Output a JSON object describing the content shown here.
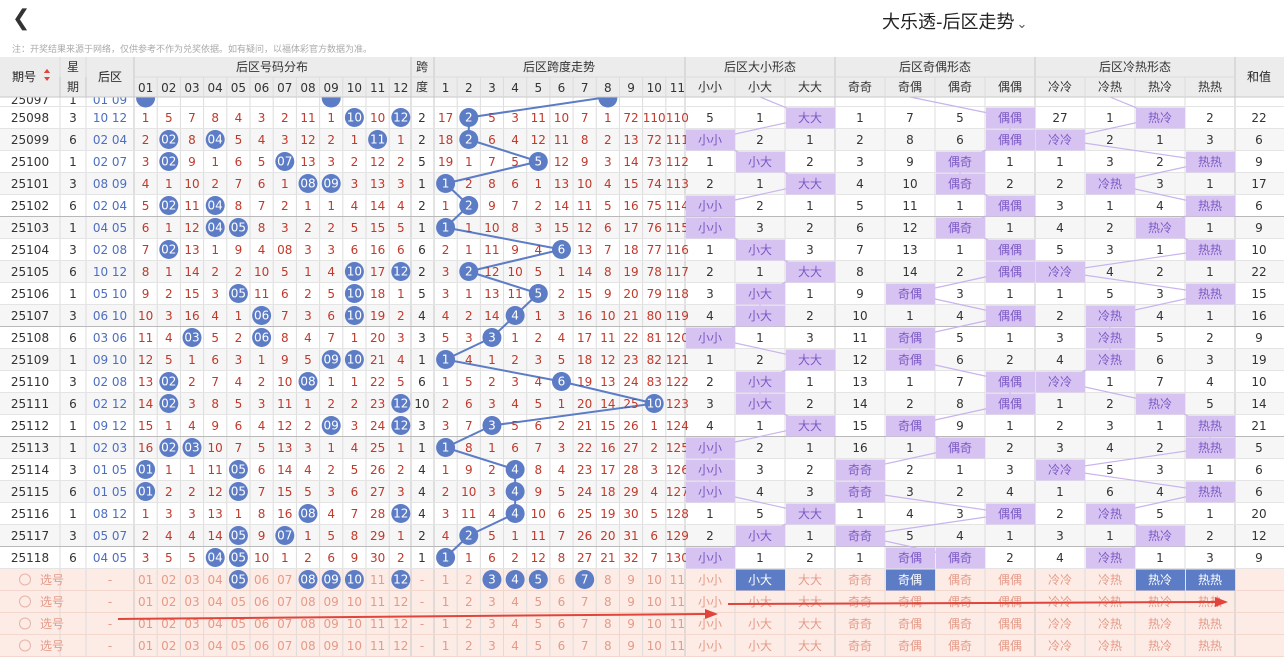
{
  "header": {
    "back_icon": "chevron-left-icon",
    "title": "大乐透-后区走势",
    "dropdown_icon": "chevron-down-icon"
  },
  "note": "注：开奖结果来源于网络，仅供参考不作为兑奖依据。如有疑问，以福体彩官方数据为准。",
  "table": {
    "col_period": "期号",
    "sort_icon": "sort-icon",
    "col_week": [
      "星",
      "期"
    ],
    "col_back": "后区",
    "group_dist": "后区号码分布",
    "group_span_top": "跨",
    "group_span_bottom": "度",
    "group_trend": "后区跨度走势",
    "group_size": "后区大小形态",
    "group_parity": "后区奇偶形态",
    "group_temp": "后区冷热形态",
    "col_sum": "和值",
    "nums": [
      "01",
      "02",
      "03",
      "04",
      "05",
      "06",
      "07",
      "08",
      "09",
      "10",
      "11",
      "12"
    ],
    "spans": [
      "1",
      "2",
      "3",
      "4",
      "5",
      "6",
      "7",
      "8",
      "9",
      "10",
      "11"
    ],
    "size_heads": [
      "小小",
      "小大",
      "大大"
    ],
    "parity_heads": [
      "奇奇",
      "奇偶",
      "偶奇",
      "偶偶"
    ],
    "temp_heads": [
      "冷冷",
      "冷热",
      "热冷",
      "热热"
    ],
    "partial_row": {
      "period": "25097",
      "week": "1",
      "back": "01 09"
    },
    "rows": [
      {
        "period": "25098",
        "week": "3",
        "back": "10 12",
        "dist": [
          "1",
          "5",
          "7",
          "8",
          "4",
          "3",
          "2",
          "11",
          "1",
          "10",
          "10",
          "12"
        ],
        "kua": "2",
        "trend": [
          "17",
          "2",
          "5",
          "3",
          "11",
          "10",
          "7",
          "1",
          "72",
          "110",
          "110"
        ],
        "size": [
          "5",
          "1",
          "大大"
        ],
        "parity": [
          "1",
          "7",
          "5",
          "偶偶"
        ],
        "temp": [
          "27",
          "1",
          "热冷",
          "2"
        ],
        "sum": "22"
      },
      {
        "period": "25099",
        "week": "6",
        "back": "02 04",
        "dist": [
          "2",
          "02",
          "8",
          "04",
          "5",
          "4",
          "3",
          "12",
          "2",
          "1",
          "11",
          "1"
        ],
        "kua": "2",
        "trend": [
          "18",
          "2",
          "6",
          "4",
          "12",
          "11",
          "8",
          "2",
          "13",
          "72",
          "111"
        ],
        "size": [
          "小小",
          "2",
          "1"
        ],
        "parity": [
          "2",
          "8",
          "6",
          "偶偶"
        ],
        "temp": [
          "冷冷",
          "2",
          "1",
          "3"
        ],
        "sum": "6"
      },
      {
        "period": "25100",
        "week": "1",
        "back": "02 07",
        "dist": [
          "3",
          "02",
          "9",
          "1",
          "6",
          "5",
          "07",
          "13",
          "3",
          "2",
          "12",
          "2"
        ],
        "kua": "5",
        "trend": [
          "19",
          "1",
          "7",
          "5",
          "5",
          "12",
          "9",
          "3",
          "14",
          "73",
          "112"
        ],
        "size": [
          "1",
          "小大",
          "2"
        ],
        "parity": [
          "3",
          "9",
          "偶奇",
          "1"
        ],
        "temp": [
          "1",
          "3",
          "2",
          "热热"
        ],
        "sum": "9"
      },
      {
        "period": "25101",
        "week": "3",
        "back": "08 09",
        "dist": [
          "4",
          "1",
          "10",
          "2",
          "7",
          "6",
          "1",
          "08",
          "09",
          "3",
          "13",
          "3"
        ],
        "kua": "1",
        "trend": [
          "1",
          "2",
          "8",
          "6",
          "1",
          "13",
          "10",
          "4",
          "15",
          "74",
          "113"
        ],
        "size": [
          "2",
          "1",
          "大大"
        ],
        "parity": [
          "4",
          "10",
          "偶奇",
          "2"
        ],
        "temp": [
          "2",
          "冷热",
          "3",
          "1"
        ],
        "sum": "17"
      },
      {
        "period": "25102",
        "week": "6",
        "back": "02 04",
        "dist": [
          "5",
          "02",
          "11",
          "04",
          "8",
          "7",
          "2",
          "1",
          "1",
          "4",
          "14",
          "4"
        ],
        "kua": "2",
        "trend": [
          "1",
          "2",
          "9",
          "7",
          "2",
          "14",
          "11",
          "5",
          "16",
          "75",
          "114"
        ],
        "size": [
          "小小",
          "2",
          "1"
        ],
        "parity": [
          "5",
          "11",
          "1",
          "偶偶"
        ],
        "temp": [
          "3",
          "1",
          "4",
          "热热"
        ],
        "sum": "6"
      },
      {
        "period": "25103",
        "week": "1",
        "back": "04 05",
        "dist": [
          "6",
          "1",
          "12",
          "04",
          "05",
          "8",
          "3",
          "2",
          "2",
          "5",
          "15",
          "5"
        ],
        "kua": "1",
        "trend": [
          "1",
          "1",
          "10",
          "8",
          "3",
          "15",
          "12",
          "6",
          "17",
          "76",
          "115"
        ],
        "size": [
          "小小",
          "3",
          "2"
        ],
        "parity": [
          "6",
          "12",
          "偶奇",
          "1"
        ],
        "temp": [
          "4",
          "2",
          "热冷",
          "1"
        ],
        "sum": "9"
      },
      {
        "period": "25104",
        "week": "3",
        "back": "02 08",
        "dist": [
          "7",
          "02",
          "13",
          "1",
          "9",
          "4",
          "08",
          "3",
          "3",
          "6",
          "16",
          "6"
        ],
        "kua": "6",
        "trend": [
          "2",
          "1",
          "11",
          "9",
          "4",
          "6",
          "13",
          "7",
          "18",
          "77",
          "116"
        ],
        "size": [
          "1",
          "小大",
          "3"
        ],
        "parity": [
          "7",
          "13",
          "1",
          "偶偶"
        ],
        "temp": [
          "5",
          "3",
          "1",
          "热热"
        ],
        "sum": "10"
      },
      {
        "period": "25105",
        "week": "6",
        "back": "10 12",
        "dist": [
          "8",
          "1",
          "14",
          "2",
          "2",
          "10",
          "5",
          "1",
          "4",
          "10",
          "17",
          "12"
        ],
        "kua": "2",
        "trend": [
          "3",
          "2",
          "12",
          "10",
          "5",
          "1",
          "14",
          "8",
          "19",
          "78",
          "117"
        ],
        "size": [
          "2",
          "1",
          "大大"
        ],
        "parity": [
          "8",
          "14",
          "2",
          "偶偶"
        ],
        "temp": [
          "冷冷",
          "4",
          "2",
          "1"
        ],
        "sum": "22"
      },
      {
        "period": "25106",
        "week": "1",
        "back": "05 10",
        "dist": [
          "9",
          "2",
          "15",
          "3",
          "05",
          "11",
          "6",
          "2",
          "5",
          "10",
          "18",
          "1"
        ],
        "kua": "5",
        "trend": [
          "3",
          "1",
          "13",
          "11",
          "5",
          "2",
          "15",
          "9",
          "20",
          "79",
          "118"
        ],
        "size": [
          "3",
          "小大",
          "1"
        ],
        "parity": [
          "9",
          "奇偶",
          "3",
          "1"
        ],
        "temp": [
          "1",
          "5",
          "3",
          "热热"
        ],
        "sum": "15"
      },
      {
        "period": "25107",
        "week": "3",
        "back": "06 10",
        "dist": [
          "10",
          "3",
          "16",
          "4",
          "1",
          "06",
          "7",
          "3",
          "6",
          "10",
          "19",
          "2"
        ],
        "kua": "4",
        "trend": [
          "4",
          "2",
          "14",
          "4",
          "1",
          "3",
          "16",
          "10",
          "21",
          "80",
          "119"
        ],
        "size": [
          "4",
          "小大",
          "2"
        ],
        "parity": [
          "10",
          "1",
          "4",
          "偶偶"
        ],
        "temp": [
          "2",
          "冷热",
          "4",
          "1"
        ],
        "sum": "16"
      },
      {
        "period": "25108",
        "week": "6",
        "back": "03 06",
        "dist": [
          "11",
          "4",
          "03",
          "5",
          "2",
          "06",
          "8",
          "4",
          "7",
          "1",
          "20",
          "3"
        ],
        "kua": "3",
        "trend": [
          "5",
          "3",
          "3",
          "1",
          "2",
          "4",
          "17",
          "11",
          "22",
          "81",
          "120"
        ],
        "size": [
          "小小",
          "1",
          "3"
        ],
        "parity": [
          "11",
          "奇偶",
          "5",
          "1"
        ],
        "temp": [
          "3",
          "冷热",
          "5",
          "2"
        ],
        "sum": "9"
      },
      {
        "period": "25109",
        "week": "1",
        "back": "09 10",
        "dist": [
          "12",
          "5",
          "1",
          "6",
          "3",
          "1",
          "9",
          "5",
          "09",
          "10",
          "21",
          "4"
        ],
        "kua": "1",
        "trend": [
          "1",
          "4",
          "1",
          "2",
          "3",
          "5",
          "18",
          "12",
          "23",
          "82",
          "121"
        ],
        "size": [
          "1",
          "2",
          "大大"
        ],
        "parity": [
          "12",
          "奇偶",
          "6",
          "2"
        ],
        "temp": [
          "4",
          "冷热",
          "6",
          "3"
        ],
        "sum": "19"
      },
      {
        "period": "25110",
        "week": "3",
        "back": "02 08",
        "dist": [
          "13",
          "02",
          "2",
          "7",
          "4",
          "2",
          "10",
          "08",
          "1",
          "1",
          "22",
          "5"
        ],
        "kua": "6",
        "trend": [
          "1",
          "5",
          "2",
          "3",
          "4",
          "6",
          "19",
          "13",
          "24",
          "83",
          "122"
        ],
        "size": [
          "2",
          "小大",
          "1"
        ],
        "parity": [
          "13",
          "1",
          "7",
          "偶偶"
        ],
        "temp": [
          "冷冷",
          "1",
          "7",
          "4"
        ],
        "sum": "10"
      },
      {
        "period": "25111",
        "week": "6",
        "back": "02 12",
        "dist": [
          "14",
          "02",
          "3",
          "8",
          "5",
          "3",
          "11",
          "1",
          "2",
          "2",
          "23",
          "12"
        ],
        "kua": "10",
        "trend": [
          "2",
          "6",
          "3",
          "4",
          "5",
          "1",
          "20",
          "14",
          "25",
          "10",
          "123"
        ],
        "size": [
          "3",
          "小大",
          "2"
        ],
        "parity": [
          "14",
          "2",
          "8",
          "偶偶"
        ],
        "temp": [
          "1",
          "2",
          "热冷",
          "5"
        ],
        "sum": "14"
      },
      {
        "period": "25112",
        "week": "1",
        "back": "09 12",
        "dist": [
          "15",
          "1",
          "4",
          "9",
          "6",
          "4",
          "12",
          "2",
          "09",
          "3",
          "24",
          "12"
        ],
        "kua": "3",
        "trend": [
          "3",
          "7",
          "3",
          "5",
          "6",
          "2",
          "21",
          "15",
          "26",
          "1",
          "124"
        ],
        "size": [
          "4",
          "1",
          "大大"
        ],
        "parity": [
          "15",
          "奇偶",
          "9",
          "1"
        ],
        "temp": [
          "2",
          "3",
          "1",
          "热热"
        ],
        "sum": "21"
      },
      {
        "period": "25113",
        "week": "1",
        "back": "02 03",
        "dist": [
          "16",
          "02",
          "03",
          "10",
          "7",
          "5",
          "13",
          "3",
          "1",
          "4",
          "25",
          "1"
        ],
        "kua": "1",
        "trend": [
          "1",
          "8",
          "1",
          "6",
          "7",
          "3",
          "22",
          "16",
          "27",
          "2",
          "125"
        ],
        "size": [
          "小小",
          "2",
          "1"
        ],
        "parity": [
          "16",
          "1",
          "偶奇",
          "2"
        ],
        "temp": [
          "3",
          "4",
          "2",
          "热热"
        ],
        "sum": "5"
      },
      {
        "period": "25114",
        "week": "3",
        "back": "01 05",
        "dist": [
          "01",
          "1",
          "1",
          "11",
          "05",
          "6",
          "14",
          "4",
          "2",
          "5",
          "26",
          "2"
        ],
        "kua": "4",
        "trend": [
          "1",
          "9",
          "2",
          "4",
          "8",
          "4",
          "23",
          "17",
          "28",
          "3",
          "126"
        ],
        "size": [
          "小小",
          "3",
          "2"
        ],
        "parity": [
          "奇奇",
          "2",
          "1",
          "3"
        ],
        "temp": [
          "冷冷",
          "5",
          "3",
          "1"
        ],
        "sum": "6"
      },
      {
        "period": "25115",
        "week": "6",
        "back": "01 05",
        "dist": [
          "01",
          "2",
          "2",
          "12",
          "05",
          "7",
          "15",
          "5",
          "3",
          "6",
          "27",
          "3"
        ],
        "kua": "4",
        "trend": [
          "2",
          "10",
          "3",
          "4",
          "9",
          "5",
          "24",
          "18",
          "29",
          "4",
          "127"
        ],
        "size": [
          "小小",
          "4",
          "3"
        ],
        "parity": [
          "奇奇",
          "3",
          "2",
          "4"
        ],
        "temp": [
          "1",
          "6",
          "4",
          "热热"
        ],
        "sum": "6"
      },
      {
        "period": "25116",
        "week": "1",
        "back": "08 12",
        "dist": [
          "1",
          "3",
          "3",
          "13",
          "1",
          "8",
          "16",
          "08",
          "4",
          "7",
          "28",
          "12"
        ],
        "kua": "4",
        "trend": [
          "3",
          "11",
          "4",
          "4",
          "10",
          "6",
          "25",
          "19",
          "30",
          "5",
          "128"
        ],
        "size": [
          "1",
          "5",
          "大大"
        ],
        "parity": [
          "1",
          "4",
          "3",
          "偶偶"
        ],
        "temp": [
          "2",
          "冷热",
          "5",
          "1"
        ],
        "sum": "20"
      },
      {
        "period": "25117",
        "week": "3",
        "back": "05 07",
        "dist": [
          "2",
          "4",
          "4",
          "14",
          "05",
          "9",
          "07",
          "1",
          "5",
          "8",
          "29",
          "1"
        ],
        "kua": "2",
        "trend": [
          "4",
          "2",
          "5",
          "1",
          "11",
          "7",
          "26",
          "20",
          "31",
          "6",
          "129"
        ],
        "size": [
          "2",
          "小大",
          "1"
        ],
        "parity": [
          "奇奇",
          "5",
          "4",
          "1"
        ],
        "temp": [
          "3",
          "1",
          "热冷",
          "2"
        ],
        "sum": "12"
      },
      {
        "period": "25118",
        "week": "6",
        "back": "04 05",
        "dist": [
          "3",
          "5",
          "5",
          "04",
          "05",
          "10",
          "1",
          "2",
          "6",
          "9",
          "30",
          "2"
        ],
        "kua": "1",
        "trend": [
          "1",
          "1",
          "6",
          "2",
          "12",
          "8",
          "27",
          "21",
          "32",
          "7",
          "130"
        ],
        "size": [
          "小小",
          "1",
          "2"
        ],
        "parity": [
          "1",
          "奇偶",
          "偶奇",
          "2"
        ],
        "temp": [
          "4",
          "冷热",
          "1",
          "3"
        ],
        "sum": "9"
      }
    ],
    "select": {
      "label": "选号",
      "dash": "-",
      "radio_icon": "radio-circle-icon",
      "rows": [
        {
          "nums_on": [
            "05",
            "08",
            "09",
            "10",
            "12"
          ],
          "trend_on": [
            "3",
            "4",
            "5",
            "7"
          ],
          "size_on": [
            "小大"
          ],
          "parity_on": [
            "奇偶"
          ],
          "temp_on": [
            "热冷",
            "热热"
          ]
        },
        {
          "nums_on": [],
          "trend_on": [],
          "size_on": [],
          "parity_on": [],
          "temp_on": []
        },
        {
          "nums_on": [],
          "trend_on": [],
          "size_on": [],
          "parity_on": [],
          "temp_on": []
        },
        {
          "nums_on": [],
          "trend_on": [],
          "size_on": [],
          "parity_on": [],
          "temp_on": []
        }
      ]
    }
  },
  "colors": {
    "ball": "#5d7cc6",
    "blue_text": "#4d6fc0",
    "red_text": "#c0392b",
    "purple_bg": "#d6c3f2",
    "purple_line": "#c9b3ee",
    "select_bg": "#fdece6",
    "select_text": "#e59a88",
    "header_bg": "#ececec",
    "annotation_arrow": "#e0443a"
  }
}
